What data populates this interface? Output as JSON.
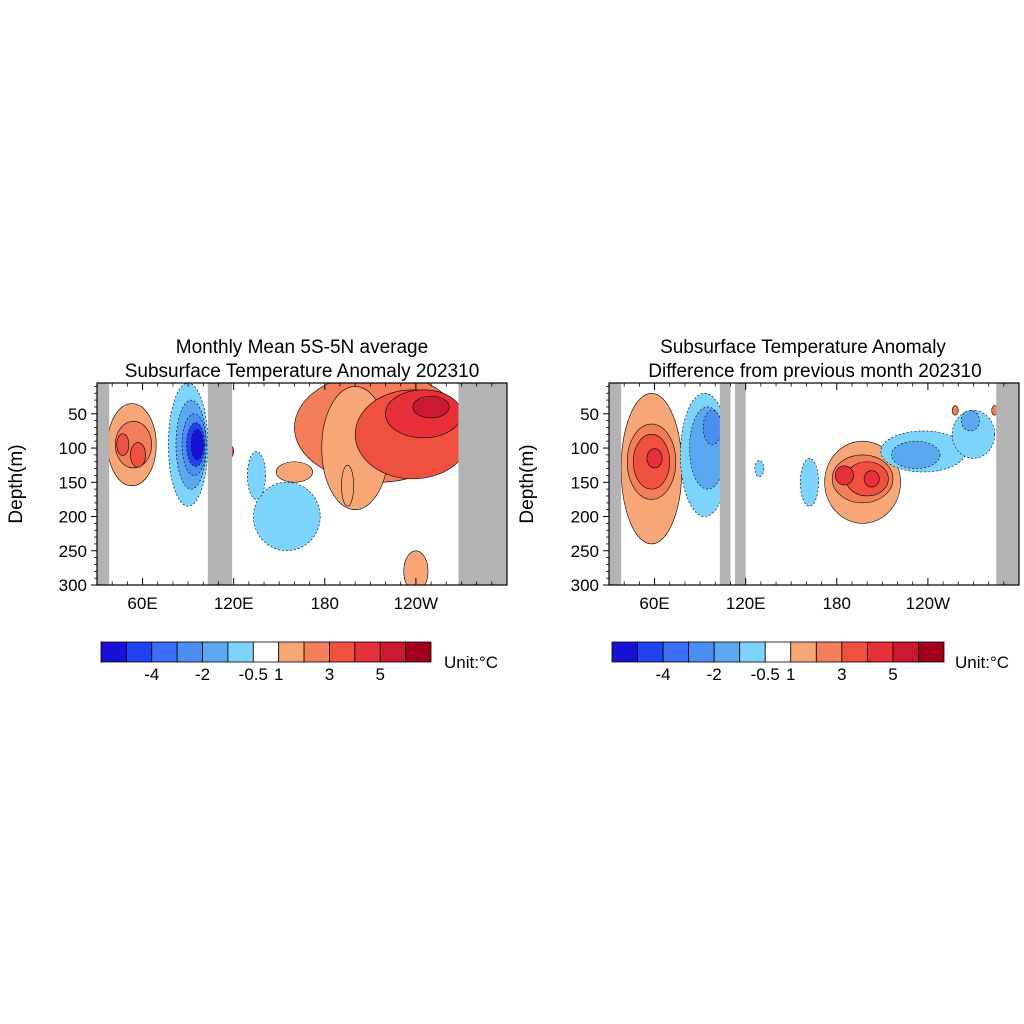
{
  "colors": {
    "land": "#b3b3b3",
    "frame": "#000000",
    "scale": [
      "#1a0fd6",
      "#2142f0",
      "#3b6ff5",
      "#4b8ef2",
      "#5ba8f0",
      "#7cd3fb",
      "#ffffff",
      "#f7a677",
      "#f47d5b",
      "#ef5040",
      "#e8303b",
      "#c9182f",
      "#a0001e"
    ]
  },
  "chart_data": [
    {
      "type": "heatmap",
      "title_line1": "Monthly Mean 5S-5N average",
      "title_line2": "Subsurface Temperature Anomaly 202310",
      "ylabel": "Depth(m)",
      "xlabel": "",
      "x_ticks": [
        "60E",
        "120E",
        "180",
        "120W"
      ],
      "x_tick_values": [
        60,
        120,
        180,
        240
      ],
      "xlim": [
        30,
        300
      ],
      "y_ticks": [
        "50",
        "100",
        "150",
        "200",
        "250",
        "300"
      ],
      "y_tick_values": [
        50,
        100,
        150,
        200,
        250,
        300
      ],
      "ylim": [
        5,
        300
      ],
      "land_masks": [
        [
          30,
          38
        ],
        [
          103,
          119
        ],
        [
          268,
          300
        ]
      ],
      "colorbar_labels": [
        "-4",
        "-2",
        "-0.5",
        "1",
        "3",
        "5"
      ],
      "colorbar_label_boxes": [
        2,
        4,
        6,
        7,
        9,
        11
      ],
      "colorbar_unit": "Unit:°C",
      "features": [
        {
          "x": 53,
          "y": 95,
          "rx": 16,
          "ry": 60,
          "level": 7
        },
        {
          "x": 54,
          "y": 95,
          "rx": 12,
          "ry": 34,
          "level": 8
        },
        {
          "x": 47,
          "y": 95,
          "rx": 4,
          "ry": 16,
          "level": 9
        },
        {
          "x": 57,
          "y": 110,
          "rx": 5,
          "ry": 18,
          "level": 9
        },
        {
          "x": 90,
          "y": 95,
          "rx": 13,
          "ry": 90,
          "level": 5
        },
        {
          "x": 92,
          "y": 95,
          "rx": 10,
          "ry": 65,
          "level": 4
        },
        {
          "x": 94,
          "y": 95,
          "rx": 8,
          "ry": 45,
          "level": 3
        },
        {
          "x": 95,
          "y": 95,
          "rx": 6,
          "ry": 32,
          "level": 1
        },
        {
          "x": 96,
          "y": 95,
          "rx": 4,
          "ry": 22,
          "level": 0
        },
        {
          "x": 155,
          "y": 200,
          "rx": 22,
          "ry": 50,
          "level": 5
        },
        {
          "x": 135,
          "y": 140,
          "rx": 6,
          "ry": 35,
          "level": 5
        },
        {
          "x": 160,
          "y": 135,
          "rx": 12,
          "ry": 15,
          "level": 7
        },
        {
          "x": 215,
          "y": 70,
          "rx": 55,
          "ry": 80,
          "level": 8
        },
        {
          "x": 200,
          "y": 100,
          "rx": 22,
          "ry": 90,
          "level": 7
        },
        {
          "x": 238,
          "y": 80,
          "rx": 38,
          "ry": 65,
          "level": 9
        },
        {
          "x": 245,
          "y": 50,
          "rx": 25,
          "ry": 35,
          "level": 10
        },
        {
          "x": 250,
          "y": 40,
          "rx": 12,
          "ry": 16,
          "level": 11
        },
        {
          "x": 195,
          "y": 155,
          "rx": 4,
          "ry": 30,
          "level": 7
        },
        {
          "x": 240,
          "y": 280,
          "rx": 8,
          "ry": 30,
          "level": 7
        },
        {
          "x": 117,
          "y": 105,
          "rx": 3,
          "ry": 10,
          "level": 10
        }
      ]
    },
    {
      "type": "heatmap",
      "title_line1": "Subsurface Temperature Anomaly",
      "title_line2": "Difference from previous month 202310",
      "ylabel": "Depth(m)",
      "xlabel": "",
      "x_ticks": [
        "60E",
        "120E",
        "180",
        "120W"
      ],
      "x_tick_values": [
        60,
        120,
        180,
        240
      ],
      "xlim": [
        30,
        300
      ],
      "y_ticks": [
        "50",
        "100",
        "150",
        "200",
        "250",
        "300"
      ],
      "y_tick_values": [
        50,
        100,
        150,
        200,
        250,
        300
      ],
      "ylim": [
        5,
        300
      ],
      "land_masks": [
        [
          30,
          38
        ],
        [
          103,
          110
        ],
        [
          113,
          120
        ],
        [
          285,
          300
        ]
      ],
      "colorbar_labels": [
        "-4",
        "-2",
        "-0.5",
        "1",
        "3",
        "5"
      ],
      "colorbar_label_boxes": [
        2,
        4,
        6,
        7,
        9,
        11
      ],
      "colorbar_unit": "Unit:°C",
      "features": [
        {
          "x": 58,
          "y": 130,
          "rx": 20,
          "ry": 110,
          "level": 7
        },
        {
          "x": 58,
          "y": 120,
          "rx": 16,
          "ry": 55,
          "level": 8
        },
        {
          "x": 58,
          "y": 120,
          "rx": 12,
          "ry": 40,
          "level": 9
        },
        {
          "x": 60,
          "y": 115,
          "rx": 5,
          "ry": 14,
          "level": 10
        },
        {
          "x": 93,
          "y": 110,
          "rx": 16,
          "ry": 90,
          "level": 5
        },
        {
          "x": 95,
          "y": 100,
          "rx": 12,
          "ry": 60,
          "level": 4
        },
        {
          "x": 98,
          "y": 70,
          "rx": 6,
          "ry": 25,
          "level": 3
        },
        {
          "x": 129,
          "y": 130,
          "rx": 3,
          "ry": 12,
          "level": 5
        },
        {
          "x": 162,
          "y": 150,
          "rx": 6,
          "ry": 35,
          "level": 5
        },
        {
          "x": 197,
          "y": 150,
          "rx": 25,
          "ry": 60,
          "level": 7
        },
        {
          "x": 197,
          "y": 145,
          "rx": 20,
          "ry": 35,
          "level": 8
        },
        {
          "x": 200,
          "y": 145,
          "rx": 14,
          "ry": 25,
          "level": 9
        },
        {
          "x": 203,
          "y": 145,
          "rx": 5,
          "ry": 12,
          "level": 10
        },
        {
          "x": 185,
          "y": 140,
          "rx": 6,
          "ry": 14,
          "level": 10
        },
        {
          "x": 237,
          "y": 105,
          "rx": 28,
          "ry": 30,
          "level": 5
        },
        {
          "x": 232,
          "y": 110,
          "rx": 16,
          "ry": 20,
          "level": 4
        },
        {
          "x": 270,
          "y": 80,
          "rx": 14,
          "ry": 35,
          "level": 5
        },
        {
          "x": 268,
          "y": 60,
          "rx": 6,
          "ry": 15,
          "level": 4
        },
        {
          "x": 258,
          "y": 45,
          "rx": 2,
          "ry": 7,
          "level": 8
        },
        {
          "x": 284,
          "y": 45,
          "rx": 2,
          "ry": 7,
          "level": 8
        }
      ]
    }
  ]
}
